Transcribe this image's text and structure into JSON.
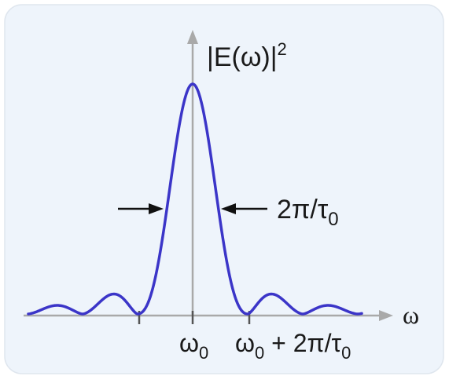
{
  "diagram": {
    "y_axis_label": {
      "base": "|E(ω)|",
      "sup": "2"
    },
    "x_axis_label": "ω",
    "width_annotation": {
      "base": "2π/τ",
      "sub": "0"
    },
    "tick_labels": {
      "center": {
        "base": "ω",
        "sub": "0"
      },
      "first_zero": {
        "base": "ω",
        "sub": "0",
        "plus": " + 2π/τ",
        "sub2": "0"
      }
    },
    "colors": {
      "panel_background": "#eef4fb",
      "panel_border": "#dfe6ee",
      "curve": "#3b35c8",
      "axis": "#a9a9a9",
      "ticks": "#555555",
      "arrows": "#111111"
    }
  }
}
